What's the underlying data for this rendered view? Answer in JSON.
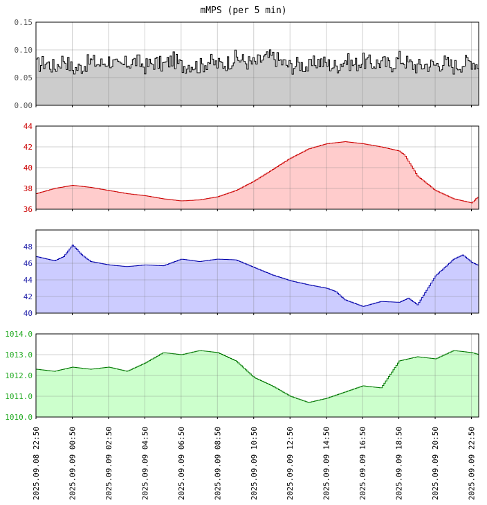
{
  "title": "mMPS (per 5 min)",
  "chart_data": {
    "type": "area",
    "title": "mMPS (per 5 min)",
    "x_tick_labels": [
      "2025.09.08 22:50",
      "2025.09.09 00:50",
      "2025.09.09 02:50",
      "2025.09.09 04:50",
      "2025.09.09 06:50",
      "2025.09.09 08:50",
      "2025.09.09 10:50",
      "2025.09.09 12:50",
      "2025.09.09 14:50",
      "2025.09.09 16:50",
      "2025.09.09 18:50",
      "2025.09.09 20:50",
      "2025.09.09 22:50"
    ],
    "x_range_hours": [
      0,
      24.4
    ],
    "grid": true,
    "panels": [
      {
        "id": "mmps",
        "color": "#000000",
        "fill": "#cccccc",
        "tick_color": "#555555",
        "ylim": [
          0,
          0.15
        ],
        "y_ticks": [
          "0.00",
          "0.05",
          "0.10",
          "0.15"
        ],
        "y_tick_values": [
          0,
          0.05,
          0.1,
          0.15
        ],
        "x": [
          0,
          0.5,
          1,
          1.5,
          2,
          2.5,
          3,
          3.5,
          4,
          4.5,
          5,
          5.5,
          6,
          6.5,
          7,
          7.5,
          8,
          8.5,
          9,
          9.5,
          10,
          10.5,
          11,
          11.5,
          12,
          12.5,
          13,
          13.5,
          14,
          14.5,
          15,
          15.5,
          16,
          16.5,
          17,
          17.5,
          18,
          18.5,
          19,
          19.5,
          20,
          20.5,
          21,
          21.5,
          22,
          22.5,
          23,
          23.5,
          24,
          24.4
        ],
        "values": [
          0.072,
          0.078,
          0.068,
          0.085,
          0.065,
          0.07,
          0.08,
          0.074,
          0.082,
          0.068,
          0.076,
          0.08,
          0.07,
          0.078,
          0.072,
          0.083,
          0.071,
          0.075,
          0.07,
          0.08,
          0.073,
          0.077,
          0.086,
          0.079,
          0.075,
          0.084,
          0.088,
          0.078,
          0.07,
          0.075,
          0.068,
          0.08,
          0.075,
          0.07,
          0.082,
          0.073,
          0.08,
          0.075,
          0.078,
          0.072,
          0.085,
          0.076,
          0.07,
          0.074,
          0.073,
          0.078,
          0.07,
          0.076,
          0.08,
          0.072
        ]
      },
      {
        "id": "temperature",
        "color": "#cc0000",
        "fill": "#ffcccc",
        "tick_color": "#cc0000",
        "ylim": [
          36,
          44
        ],
        "y_ticks": [
          "36",
          "38",
          "40",
          "42",
          "44"
        ],
        "y_tick_values": [
          36,
          38,
          40,
          42,
          44
        ],
        "x": [
          0,
          1,
          2,
          3,
          4,
          5,
          6,
          7,
          8,
          9,
          10,
          11,
          12,
          13,
          14,
          15,
          16,
          17,
          18,
          19,
          20,
          20.3,
          21,
          22,
          23,
          24,
          24.4
        ],
        "values": [
          37.5,
          38.0,
          38.3,
          38.1,
          37.8,
          37.5,
          37.3,
          37.0,
          36.8,
          36.9,
          37.2,
          37.8,
          38.7,
          39.8,
          40.9,
          41.8,
          42.3,
          42.5,
          42.3,
          42.0,
          41.6,
          41.2,
          39.2,
          37.8,
          37.0,
          36.6,
          37.3
        ]
      },
      {
        "id": "humidity",
        "color": "#0000aa",
        "fill": "#ccccff",
        "tick_color": "#2222aa",
        "ylim": [
          40,
          50
        ],
        "y_ticks": [
          "40",
          "42",
          "44",
          "46",
          "48"
        ],
        "y_tick_values": [
          40,
          42,
          44,
          46,
          48
        ],
        "x": [
          0,
          1,
          1.5,
          2,
          2.5,
          3,
          4,
          5,
          6,
          7,
          8,
          9,
          10,
          11,
          12,
          13,
          14,
          15,
          16,
          16.5,
          17,
          18,
          19,
          20,
          20.5,
          21,
          22,
          23,
          23.5,
          24,
          24.4
        ],
        "values": [
          46.8,
          46.3,
          46.8,
          48.2,
          47.0,
          46.2,
          45.8,
          45.6,
          45.8,
          45.7,
          46.5,
          46.2,
          46.5,
          46.4,
          45.5,
          44.6,
          43.9,
          43.4,
          43.0,
          42.6,
          41.6,
          40.8,
          41.4,
          41.3,
          41.8,
          41.0,
          44.5,
          46.5,
          47.0,
          46.1,
          45.7
        ]
      },
      {
        "id": "pressure",
        "color": "#007700",
        "fill": "#ccffcc",
        "tick_color": "#22aa22",
        "ylim": [
          1010,
          1014
        ],
        "y_ticks": [
          "1010.0",
          "1011.0",
          "1012.0",
          "1013.0",
          "1014.0"
        ],
        "y_tick_values": [
          1010,
          1011,
          1012,
          1013,
          1014
        ],
        "x": [
          0,
          1,
          2,
          3,
          4,
          5,
          6,
          7,
          8,
          9,
          10,
          11,
          12,
          13,
          14,
          15,
          16,
          17,
          18,
          19,
          20,
          21,
          22,
          23,
          24,
          24.4
        ],
        "values": [
          1012.3,
          1012.2,
          1012.4,
          1012.3,
          1012.4,
          1012.2,
          1012.6,
          1013.1,
          1013.0,
          1013.2,
          1013.1,
          1012.7,
          1011.9,
          1011.5,
          1011.0,
          1010.7,
          1010.9,
          1011.2,
          1011.5,
          1011.4,
          1012.7,
          1012.9,
          1012.8,
          1013.2,
          1013.1,
          1013.0
        ]
      }
    ]
  }
}
